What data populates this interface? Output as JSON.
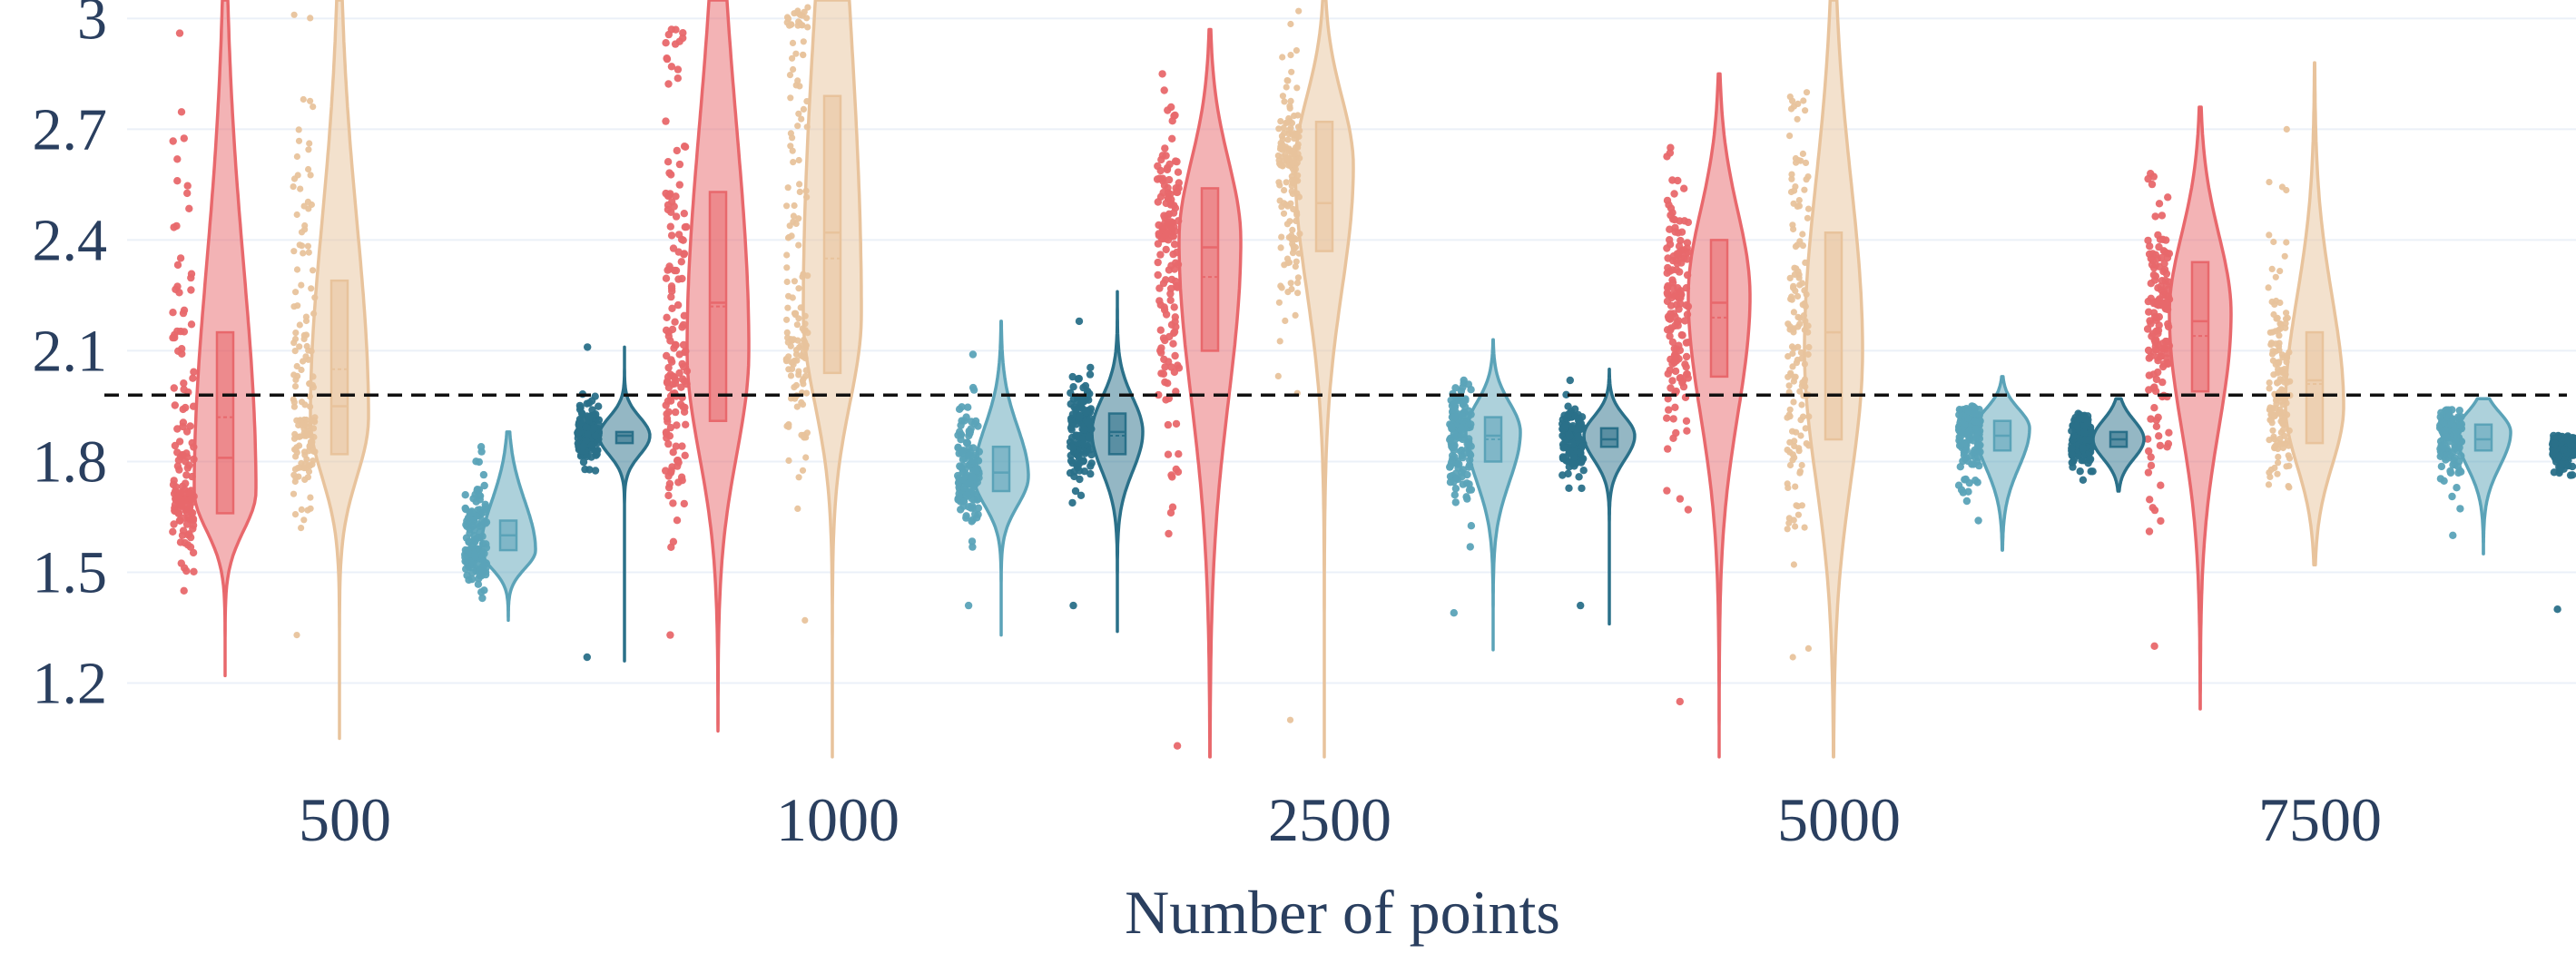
{
  "chart_data": {
    "type": "violin",
    "xlabel": "Number of points",
    "ylabel": "",
    "categories": [
      "500",
      "1000",
      "2500",
      "5000",
      "7500"
    ],
    "ylim": [
      0.98,
      3.05
    ],
    "yticks": [
      1.2,
      1.5,
      1.8,
      2.1,
      2.4,
      2.7,
      3
    ],
    "ytick_labels": [
      "1.2",
      "1.5",
      "1.8",
      "2.1",
      "2.4",
      "2.7",
      "3"
    ],
    "reference_line": 1.98,
    "grid": "horizontal",
    "legend": "none",
    "series": [
      {
        "color": "#e8686c",
        "stats": [
          {
            "min": 1.22,
            "q1": 1.66,
            "median": 1.81,
            "mean": 1.92,
            "q3": 2.15,
            "max": 3.05,
            "pts_min": 1.45,
            "pts_max": 2.96,
            "mode": 1.72
          },
          {
            "min": 1.07,
            "q1": 1.91,
            "median": 2.23,
            "mean": 2.22,
            "q3": 2.53,
            "max": 3.05,
            "pts_min": 1.33,
            "pts_max": 2.97,
            "mode": 2.1
          },
          {
            "min": 1.0,
            "q1": 2.1,
            "median": 2.38,
            "mean": 2.3,
            "q3": 2.54,
            "max": 2.97,
            "pts_min": 1.03,
            "pts_max": 2.85,
            "mode": 2.4
          },
          {
            "min": 1.0,
            "q1": 2.03,
            "median": 2.23,
            "mean": 2.19,
            "q3": 2.4,
            "max": 2.85,
            "pts_min": 1.15,
            "pts_max": 2.65,
            "mode": 2.25
          },
          {
            "min": 1.13,
            "q1": 1.99,
            "median": 2.18,
            "mean": 2.14,
            "q3": 2.34,
            "max": 2.76,
            "pts_min": 1.3,
            "pts_max": 2.58,
            "mode": 2.2
          }
        ]
      },
      {
        "color": "#e8c39c",
        "stats": [
          {
            "min": 1.05,
            "q1": 1.82,
            "median": 1.95,
            "mean": 2.05,
            "q3": 2.29,
            "max": 3.05,
            "pts_min": 1.33,
            "pts_max": 3.01,
            "mode": 1.92
          },
          {
            "min": 1.0,
            "q1": 2.04,
            "median": 2.42,
            "mean": 2.35,
            "q3": 2.79,
            "max": 3.05,
            "pts_min": 1.37,
            "pts_max": 3.03,
            "mode": 2.2
          },
          {
            "min": 1.0,
            "q1": 2.37,
            "median": 2.5,
            "mean": 2.5,
            "q3": 2.72,
            "max": 3.05,
            "pts_min": 1.1,
            "pts_max": 3.02,
            "mode": 2.6
          },
          {
            "min": 1.0,
            "q1": 1.86,
            "median": 2.15,
            "mean": 2.15,
            "q3": 2.42,
            "max": 3.05,
            "pts_min": 1.27,
            "pts_max": 2.8,
            "mode": 2.1
          },
          {
            "min": 1.52,
            "q1": 1.85,
            "median": 2.02,
            "mean": 2.01,
            "q3": 2.15,
            "max": 2.88,
            "pts_min": 1.73,
            "pts_max": 2.7,
            "mode": 1.95
          }
        ]
      },
      {
        "color": "#5ba3b8",
        "stats": [
          {
            "min": 1.37,
            "q1": 1.56,
            "median": 1.6,
            "mean": 1.6,
            "q3": 1.64,
            "max": 1.88,
            "pts_min": 1.43,
            "pts_max": 1.84,
            "mode": 1.56
          },
          {
            "min": 1.33,
            "q1": 1.72,
            "median": 1.77,
            "mean": 1.77,
            "q3": 1.84,
            "max": 2.18,
            "pts_min": 1.41,
            "pts_max": 2.09,
            "mode": 1.76
          },
          {
            "min": 1.29,
            "q1": 1.8,
            "median": 1.87,
            "mean": 1.86,
            "q3": 1.92,
            "max": 2.13,
            "pts_min": 1.39,
            "pts_max": 2.02,
            "mode": 1.88
          },
          {
            "min": 1.56,
            "q1": 1.83,
            "median": 1.87,
            "mean": 1.87,
            "q3": 1.91,
            "max": 2.03,
            "pts_min": 1.64,
            "pts_max": 1.95,
            "mode": 1.89
          },
          {
            "min": 1.55,
            "q1": 1.83,
            "median": 1.86,
            "mean": 1.86,
            "q3": 1.9,
            "max": 1.97,
            "pts_min": 1.6,
            "pts_max": 1.94,
            "mode": 1.88
          }
        ]
      },
      {
        "color": "#2a7089",
        "stats": [
          {
            "min": 1.26,
            "q1": 1.85,
            "median": 1.87,
            "mean": 1.87,
            "q3": 1.88,
            "max": 2.11,
            "pts_min": 1.27,
            "pts_max": 2.11,
            "mode": 1.87
          },
          {
            "min": 1.34,
            "q1": 1.82,
            "median": 1.88,
            "mean": 1.87,
            "q3": 1.93,
            "max": 2.26,
            "pts_min": 1.41,
            "pts_max": 2.18,
            "mode": 1.88
          },
          {
            "min": 1.36,
            "q1": 1.84,
            "median": 1.86,
            "mean": 1.86,
            "q3": 1.89,
            "max": 2.05,
            "pts_min": 1.41,
            "pts_max": 2.02,
            "mode": 1.87
          },
          {
            "min": 1.72,
            "q1": 1.84,
            "median": 1.86,
            "mean": 1.86,
            "q3": 1.88,
            "max": 1.97,
            "pts_min": 1.75,
            "pts_max": 1.93,
            "mode": 1.86
          },
          {
            "min": 1.4,
            "q1": 1.83,
            "median": 1.84,
            "mean": 1.84,
            "q3": 1.85,
            "max": 1.87,
            "pts_min": 1.4,
            "pts_max": 1.87,
            "mode": 1.845
          }
        ]
      }
    ]
  }
}
